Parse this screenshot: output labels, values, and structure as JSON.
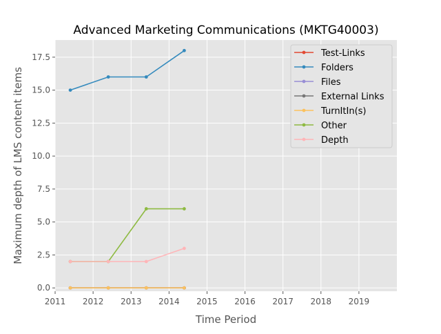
{
  "chart_data": {
    "type": "line",
    "title": "Advanced Marketing Communications (MKTG40003)",
    "xlabel": "Time Period",
    "ylabel": "Maximum depth of LMS content items",
    "xlim": [
      2011,
      2020
    ],
    "ylim": [
      -0.25,
      18.8
    ],
    "x_ticks": [
      2011,
      2012,
      2013,
      2014,
      2015,
      2016,
      2017,
      2018,
      2019
    ],
    "x_tick_labels": [
      "2011",
      "2012",
      "2013",
      "2014",
      "2015",
      "2016",
      "2017",
      "2018",
      "2019"
    ],
    "y_ticks": [
      0,
      2.5,
      5,
      7.5,
      10,
      12.5,
      15,
      17.5
    ],
    "y_tick_labels": [
      "0.0",
      "2.5",
      "5.0",
      "7.5",
      "10.0",
      "12.5",
      "15.0",
      "17.5"
    ],
    "grid": true,
    "legend_position": "top-right",
    "x": [
      2011.4,
      2012.4,
      2013.4,
      2014.4
    ],
    "series": [
      {
        "name": "Test-Links",
        "color": "#E24A33",
        "values": [
          0,
          0,
          0,
          0
        ]
      },
      {
        "name": "Folders",
        "color": "#348ABD",
        "values": [
          15,
          16,
          16,
          18
        ]
      },
      {
        "name": "Files",
        "color": "#988ED5",
        "values": [
          0,
          0,
          0,
          0
        ]
      },
      {
        "name": "External Links",
        "color": "#777777",
        "values": [
          0,
          0,
          0,
          0
        ]
      },
      {
        "name": "TurnItIn(s)",
        "color": "#FBC15E",
        "values": [
          0,
          0,
          0,
          0
        ]
      },
      {
        "name": "Other",
        "color": "#8EBA42",
        "values": [
          2,
          2,
          6,
          6
        ]
      },
      {
        "name": "Depth",
        "color": "#FFB5B8",
        "values": [
          2,
          2,
          2,
          3
        ]
      }
    ]
  }
}
